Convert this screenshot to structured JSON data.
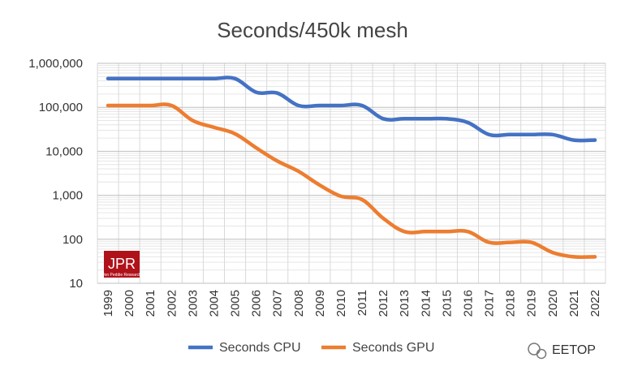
{
  "chart_data": {
    "type": "line",
    "title": "Seconds/450k mesh",
    "xlabel": "",
    "ylabel": "",
    "y_scale": "log",
    "ylim": [
      10,
      1000000
    ],
    "y_ticks": [
      10,
      100,
      1000,
      10000,
      100000,
      1000000
    ],
    "y_tick_labels": [
      "10",
      "100",
      "1,000",
      "10,000",
      "100,000",
      "1,000,000"
    ],
    "categories": [
      "1999",
      "2000",
      "2001",
      "2002",
      "2003",
      "2004",
      "2005",
      "2006",
      "2007",
      "2008",
      "2009",
      "2010",
      "2011",
      "2012",
      "2013",
      "2014",
      "2015",
      "2016",
      "2017",
      "2018",
      "2019",
      "2020",
      "2021",
      "2022"
    ],
    "grid": true,
    "legend_position": "bottom",
    "series": [
      {
        "name": "Seconds CPU",
        "color": "#4472c4",
        "values": [
          450000,
          450000,
          450000,
          450000,
          450000,
          450000,
          450000,
          220000,
          210000,
          110000,
          110000,
          110000,
          110000,
          55000,
          55000,
          55000,
          55000,
          45000,
          24000,
          24000,
          24000,
          24000,
          18000,
          18000
        ]
      },
      {
        "name": "Seconds GPU",
        "color": "#ed7d31",
        "values": [
          110000,
          110000,
          110000,
          110000,
          50000,
          35000,
          25000,
          12000,
          6000,
          3500,
          1700,
          950,
          800,
          300,
          150,
          150,
          150,
          150,
          85,
          85,
          85,
          50,
          40,
          40
        ]
      }
    ]
  },
  "logo": {
    "text": "JPR",
    "subtext": "Jon Peddie Research"
  },
  "watermark": {
    "text": "EETOP",
    "icon": "wechat-icon"
  }
}
